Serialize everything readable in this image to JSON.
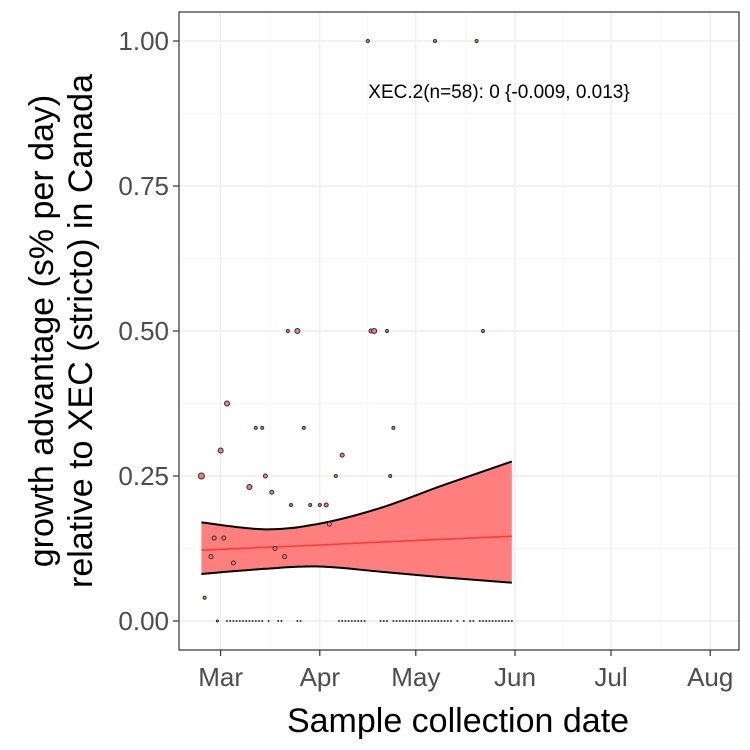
{
  "chart_data": {
    "type": "scatter",
    "title": "",
    "xlabel": "Sample collection date",
    "ylabel_lines": [
      "growth advantage (s% per day)",
      "relative to XEC (stricto) in Canada"
    ],
    "x_ticks": [
      {
        "date": "2025-03-01",
        "label": "Mar"
      },
      {
        "date": "2025-04-01",
        "label": "Apr"
      },
      {
        "date": "2025-05-01",
        "label": "May"
      },
      {
        "date": "2025-06-01",
        "label": "Jun"
      },
      {
        "date": "2025-07-01",
        "label": "Jul"
      },
      {
        "date": "2025-08-01",
        "label": "Aug"
      }
    ],
    "y_ticks": [
      "0.00",
      "0.25",
      "0.50",
      "0.75",
      "1.00"
    ],
    "xlim": [
      "2025-02-16",
      "2025-08-10"
    ],
    "ylim": [
      -0.05,
      1.05
    ],
    "grid": true,
    "annotation": "XEC.2(n=58): 0 {-0.009, 0.013}",
    "colors": {
      "points_outline": "#3a2a2a",
      "points_fill": "#f08080",
      "fit_line": "#ff3b30",
      "ribbon_fill": "#ff7f7f",
      "ribbon_edge": "#000000",
      "panel_border": "#333333",
      "grid_major": "#ebebeb",
      "grid_minor": "#f5f5f5"
    },
    "fit": {
      "x": [
        "2025-02-23",
        "2025-03-15",
        "2025-04-01",
        "2025-04-20",
        "2025-05-10",
        "2025-05-31"
      ],
      "y": [
        0.122,
        0.127,
        0.131,
        0.136,
        0.141,
        0.146
      ],
      "lower": [
        0.081,
        0.09,
        0.094,
        0.085,
        0.075,
        0.066
      ],
      "upper": [
        0.17,
        0.158,
        0.168,
        0.195,
        0.235,
        0.275
      ]
    },
    "points": [
      {
        "x": "2025-02-23",
        "y": 0.25,
        "size": 3
      },
      {
        "x": "2025-02-24",
        "y": 0.04,
        "size": 1.5
      },
      {
        "x": "2025-02-26",
        "y": 0.111,
        "size": 2
      },
      {
        "x": "2025-02-27",
        "y": 0.143,
        "size": 2
      },
      {
        "x": "2025-02-28",
        "y": 0.0,
        "size": 1
      },
      {
        "x": "2025-03-01",
        "y": 0.294,
        "size": 2.5
      },
      {
        "x": "2025-03-02",
        "y": 0.143,
        "size": 2
      },
      {
        "x": "2025-03-03",
        "y": 0.375,
        "size": 2.5
      },
      {
        "x": "2025-03-05",
        "y": 0.1,
        "size": 2
      },
      {
        "x": "2025-03-10",
        "y": 0.231,
        "size": 2.5
      },
      {
        "x": "2025-03-12",
        "y": 0.333,
        "size": 1.5
      },
      {
        "x": "2025-03-14",
        "y": 0.333,
        "size": 1.5
      },
      {
        "x": "2025-03-15",
        "y": 0.25,
        "size": 2
      },
      {
        "x": "2025-03-17",
        "y": 0.222,
        "size": 2
      },
      {
        "x": "2025-03-18",
        "y": 0.125,
        "size": 2
      },
      {
        "x": "2025-03-21",
        "y": 0.111,
        "size": 2
      },
      {
        "x": "2025-03-22",
        "y": 0.5,
        "size": 1.5
      },
      {
        "x": "2025-03-23",
        "y": 0.2,
        "size": 1.5
      },
      {
        "x": "2025-03-25",
        "y": 0.5,
        "size": 2.5
      },
      {
        "x": "2025-03-27",
        "y": 0.333,
        "size": 1.5
      },
      {
        "x": "2025-03-29",
        "y": 0.2,
        "size": 1.5
      },
      {
        "x": "2025-04-01",
        "y": 0.2,
        "size": 1.5
      },
      {
        "x": "2025-04-03",
        "y": 0.2,
        "size": 2
      },
      {
        "x": "2025-04-04",
        "y": 0.167,
        "size": 2
      },
      {
        "x": "2025-04-06",
        "y": 0.25,
        "size": 1.5
      },
      {
        "x": "2025-04-08",
        "y": 0.286,
        "size": 2
      },
      {
        "x": "2025-04-16",
        "y": 1.0,
        "size": 1.5
      },
      {
        "x": "2025-04-17",
        "y": 0.5,
        "size": 2
      },
      {
        "x": "2025-04-18",
        "y": 0.5,
        "size": 2.5
      },
      {
        "x": "2025-04-22",
        "y": 0.5,
        "size": 1.5
      },
      {
        "x": "2025-04-23",
        "y": 0.25,
        "size": 1.5
      },
      {
        "x": "2025-04-24",
        "y": 0.333,
        "size": 1.5
      },
      {
        "x": "2025-05-07",
        "y": 1.0,
        "size": 1.5
      },
      {
        "x": "2025-05-20",
        "y": 1.0,
        "size": 1.5
      },
      {
        "x": "2025-05-22",
        "y": 0.5,
        "size": 1.5
      }
    ],
    "zero_points": [
      "2025-03-03",
      "2025-03-04",
      "2025-03-05",
      "2025-03-06",
      "2025-03-07",
      "2025-03-08",
      "2025-03-09",
      "2025-03-10",
      "2025-03-11",
      "2025-03-12",
      "2025-03-13",
      "2025-03-14",
      "2025-03-16",
      "2025-03-19",
      "2025-03-20",
      "2025-03-25",
      "2025-03-26",
      "2025-04-07",
      "2025-04-08",
      "2025-04-09",
      "2025-04-10",
      "2025-04-11",
      "2025-04-12",
      "2025-04-13",
      "2025-04-14",
      "2025-04-15",
      "2025-04-20",
      "2025-04-21",
      "2025-04-22",
      "2025-04-24",
      "2025-04-25",
      "2025-04-26",
      "2025-04-27",
      "2025-04-28",
      "2025-04-29",
      "2025-04-30",
      "2025-05-01",
      "2025-05-02",
      "2025-05-03",
      "2025-05-04",
      "2025-05-05",
      "2025-05-06",
      "2025-05-07",
      "2025-05-08",
      "2025-05-09",
      "2025-05-10",
      "2025-05-11",
      "2025-05-12",
      "2025-05-14",
      "2025-05-16",
      "2025-05-18",
      "2025-05-19",
      "2025-05-21",
      "2025-05-22",
      "2025-05-23",
      "2025-05-24",
      "2025-05-25",
      "2025-05-26",
      "2025-05-27",
      "2025-05-28",
      "2025-05-29",
      "2025-05-30",
      "2025-05-31"
    ]
  }
}
